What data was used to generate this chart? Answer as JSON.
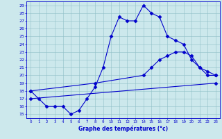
{
  "xlabel": "Graphe des températures (°c)",
  "xlim": [
    -0.5,
    23.5
  ],
  "ylim": [
    14.5,
    29.5
  ],
  "xticks": [
    0,
    1,
    2,
    3,
    4,
    5,
    6,
    7,
    8,
    9,
    10,
    11,
    12,
    13,
    14,
    15,
    16,
    17,
    18,
    19,
    20,
    21,
    22,
    23
  ],
  "yticks": [
    15,
    16,
    17,
    18,
    19,
    20,
    21,
    22,
    23,
    24,
    25,
    26,
    27,
    28,
    29
  ],
  "background_color": "#cce8ec",
  "line_color": "#0000cc",
  "line1_x": [
    0,
    1,
    2,
    3,
    4,
    5,
    6,
    7,
    8,
    9,
    10,
    11,
    12,
    13,
    14,
    15,
    16,
    17,
    18,
    19,
    20,
    21,
    22,
    23
  ],
  "line1_y": [
    18,
    17,
    16,
    16,
    16,
    15,
    15.5,
    17,
    18.5,
    21,
    25,
    27.5,
    27,
    27,
    29,
    28,
    27.5,
    25,
    24.5,
    24,
    22,
    21,
    20,
    20
  ],
  "line2_x": [
    0,
    8,
    14,
    15,
    16,
    17,
    18,
    19,
    20,
    21,
    22,
    23
  ],
  "line2_y": [
    18,
    19,
    20,
    21,
    22,
    22.5,
    23,
    23,
    22.5,
    21,
    20.5,
    20
  ],
  "line3_x": [
    0,
    23
  ],
  "line3_y": [
    17,
    19
  ],
  "marker": "D",
  "markersize": 2.5,
  "linewidth": 0.8
}
